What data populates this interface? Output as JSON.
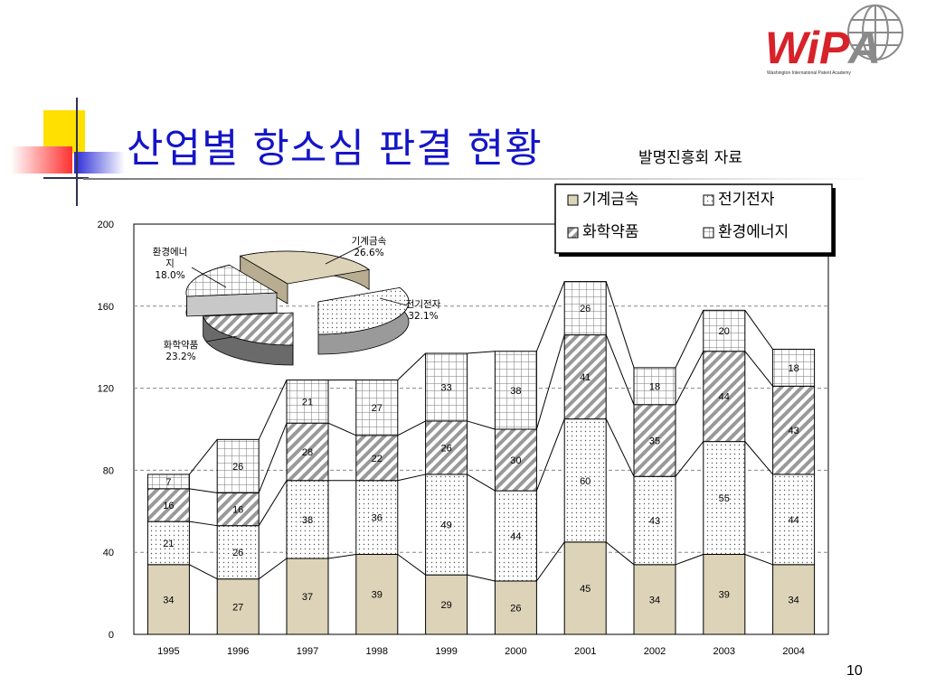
{
  "slide": {
    "title": "산업별 항소심 판결 현황",
    "subtitle": "발명진흥회 자료",
    "page_number": "10"
  },
  "logo": {
    "text": "WiPA",
    "tagline": "Washington International Patent Academy",
    "colors": {
      "red": "#d8222a",
      "gray": "#8a8a8a"
    }
  },
  "colors": {
    "title": "#1414c8",
    "deco_yellow": "#ffe000",
    "deco_red": "#ff3030",
    "deco_blue": "#2a2ad8",
    "metal_fill": "#ddd3b8",
    "plot_border": "#000000"
  },
  "chart_data": {
    "type": "bar",
    "stacked": true,
    "categories": [
      "1995",
      "1996",
      "1997",
      "1998",
      "1999",
      "2000",
      "2001",
      "2002",
      "2003",
      "2004"
    ],
    "series": [
      {
        "name": "기계금속",
        "values": [
          34,
          27,
          37,
          39,
          29,
          26,
          45,
          34,
          39,
          34
        ],
        "pattern": "solid-beige"
      },
      {
        "name": "전기전자",
        "values": [
          21,
          26,
          38,
          36,
          49,
          44,
          60,
          43,
          55,
          44
        ],
        "pattern": "dots"
      },
      {
        "name": "화학약품",
        "values": [
          16,
          16,
          28,
          22,
          26,
          30,
          41,
          35,
          44,
          43
        ],
        "pattern": "diagonal"
      },
      {
        "name": "환경에너지",
        "values": [
          7,
          26,
          21,
          27,
          33,
          38,
          26,
          18,
          20,
          18
        ],
        "pattern": "grid"
      }
    ],
    "series_labels": [
      [
        "34",
        "27",
        "37",
        "39",
        "29",
        "26",
        "45",
        "34",
        "39",
        "34"
      ],
      [
        "21",
        "26",
        "38",
        "36",
        "49",
        "44",
        "60",
        "43",
        "55",
        "44"
      ],
      [
        "16",
        "16",
        "28",
        "22",
        "26",
        "30",
        "41",
        "35",
        "44",
        "43"
      ],
      [
        "7",
        "26",
        "21",
        "27",
        "33",
        "38",
        "26",
        "18",
        "20",
        "18"
      ]
    ],
    "ylim": [
      0,
      200
    ],
    "yticks": [
      "0",
      "40",
      "80",
      "120",
      "160",
      "200"
    ],
    "grid": true,
    "legend": {
      "placement": "top-right",
      "entries": [
        "기계금속",
        "전기전자",
        "화학약품",
        "환경에너지"
      ]
    },
    "inset_pie": {
      "type": "pie",
      "slices": [
        {
          "name": "기계금속",
          "value": 26.6,
          "label": [
            "기계금속",
            "26.6%"
          ]
        },
        {
          "name": "전기전자",
          "value": 32.1,
          "label": [
            "전기전자",
            "32.1%"
          ]
        },
        {
          "name": "화학약품",
          "value": 23.2,
          "label": [
            "화학약품",
            "23.2%"
          ]
        },
        {
          "name": "환경에너지",
          "value": 18.0,
          "label": [
            "환경에너",
            "지",
            "18.0%"
          ]
        }
      ]
    }
  }
}
